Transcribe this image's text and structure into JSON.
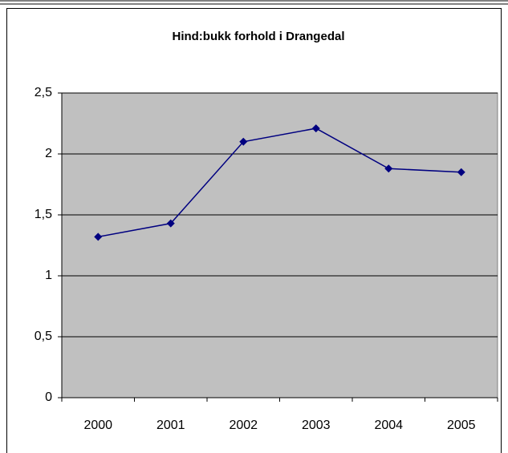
{
  "chart_data": {
    "type": "line",
    "title": "Hind:bukk forhold i Drangedal",
    "categories": [
      "2000",
      "2001",
      "2002",
      "2003",
      "2004",
      "2005"
    ],
    "series": [
      {
        "name": "Hind:bukk forhold",
        "color": "#000080",
        "values": [
          1.32,
          1.43,
          2.1,
          2.21,
          1.88,
          1.85
        ]
      }
    ],
    "ylim": [
      0,
      2.5
    ],
    "yticks": [
      0,
      {
        "value": 0.5,
        "label": "0,5"
      },
      1,
      {
        "value": 1.5,
        "label": "1,5"
      },
      2,
      {
        "value": 2.5,
        "label": "2,5"
      }
    ],
    "grid": true,
    "plot_background": "#c0c0c0",
    "legend": false
  }
}
